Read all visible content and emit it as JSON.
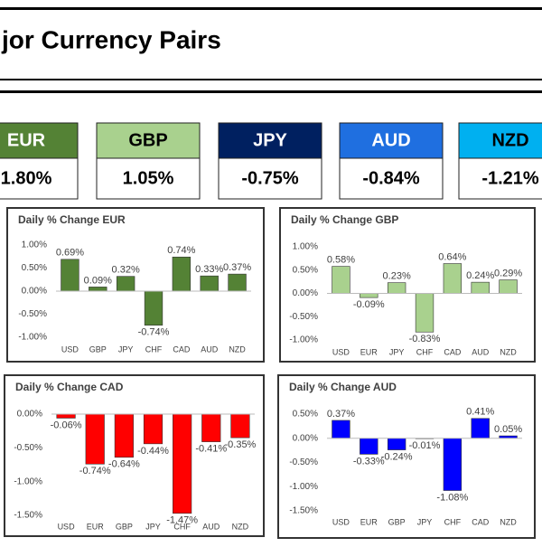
{
  "header": {
    "title": "jor Currency Pairs"
  },
  "tiles": [
    {
      "name": "EUR",
      "value": "1.80%",
      "color": "#548235",
      "text_color": "#ffffff"
    },
    {
      "name": "GBP",
      "value": "1.05%",
      "color": "#a9d18e",
      "text_color": "#000000"
    },
    {
      "name": "JPY",
      "value": "-0.75%",
      "color": "#002060",
      "text_color": "#ffffff"
    },
    {
      "name": "AUD",
      "value": "-0.84%",
      "color": "#1f6fe0",
      "text_color": "#ffffff"
    },
    {
      "name": "NZD",
      "value": "-1.21%",
      "color": "#00b0f0",
      "text_color": "#000000"
    }
  ],
  "chart_data": [
    {
      "type": "bar",
      "title": "Daily % Change EUR",
      "color": "#548235",
      "categories": [
        "USD",
        "GBP",
        "JPY",
        "CHF",
        "CAD",
        "AUD",
        "NZD"
      ],
      "values": [
        0.69,
        0.09,
        0.32,
        -0.74,
        0.74,
        0.33,
        0.37
      ],
      "value_labels": [
        "0.69%",
        "0.09%",
        "0.32%",
        "-0.74%",
        "0.74%",
        "0.33%",
        "0.37%"
      ],
      "ylim": [
        -1,
        1
      ],
      "yticks": [
        {
          "value": -1,
          "label": "-1.00%"
        },
        {
          "value": -0.5,
          "label": "-0.50%"
        },
        {
          "value": 0,
          "label": "0.00%"
        },
        {
          "value": 0.5,
          "label": "0.50%"
        },
        {
          "value": 1,
          "label": "1.00%"
        }
      ]
    },
    {
      "type": "bar",
      "title": "Daily % Change GBP",
      "color": "#a9d18e",
      "categories": [
        "USD",
        "EUR",
        "JPY",
        "CHF",
        "CAD",
        "AUD",
        "NZD"
      ],
      "values": [
        0.58,
        -0.09,
        0.23,
        -0.83,
        0.64,
        0.24,
        0.29
      ],
      "value_labels": [
        "0.58%",
        "-0.09%",
        "0.23%",
        "-0.83%",
        "0.64%",
        "0.24%",
        "0.29%"
      ],
      "ylim": [
        -1,
        1
      ],
      "yticks": [
        {
          "value": -1,
          "label": "-1.00%"
        },
        {
          "value": -0.5,
          "label": "-0.50%"
        },
        {
          "value": 0,
          "label": "0.00%"
        },
        {
          "value": 0.5,
          "label": "0.50%"
        },
        {
          "value": 1,
          "label": "1.00%"
        }
      ]
    },
    {
      "type": "bar",
      "title": "Daily % Change CAD",
      "color": "#ff0000",
      "categories": [
        "USD",
        "EUR",
        "GBP",
        "JPY",
        "CHF",
        "AUD",
        "NZD"
      ],
      "values": [
        -0.06,
        -0.74,
        -0.64,
        -0.44,
        -1.47,
        -0.41,
        -0.35
      ],
      "value_labels": [
        "-0.06%",
        "-0.74%",
        "-0.64%",
        "-0.44%",
        "-1.47%",
        "-0.41%",
        "-0.35%"
      ],
      "ylim": [
        -1.5,
        0
      ],
      "yticks": [
        {
          "value": -1.5,
          "label": "-1.50%"
        },
        {
          "value": -1,
          "label": "-1.00%"
        },
        {
          "value": -0.5,
          "label": "-0.50%"
        },
        {
          "value": 0,
          "label": "0.00%"
        }
      ]
    },
    {
      "type": "bar",
      "title": "Daily % Change AUD",
      "color": "#0000ff",
      "categories": [
        "USD",
        "EUR",
        "GBP",
        "JPY",
        "CHF",
        "CAD",
        "NZD"
      ],
      "values": [
        0.37,
        -0.33,
        -0.24,
        -0.01,
        -1.08,
        0.41,
        0.05
      ],
      "value_labels": [
        "0.37%",
        "-0.33%",
        "-0.24%",
        "-0.01%",
        "-1.08%",
        "0.41%",
        "0.05%"
      ],
      "ylim": [
        -1.5,
        0.5
      ],
      "yticks": [
        {
          "value": -1.5,
          "label": "-1.50%"
        },
        {
          "value": -1,
          "label": "-1.00%"
        },
        {
          "value": -0.5,
          "label": "-0.50%"
        },
        {
          "value": 0,
          "label": "0.00%"
        },
        {
          "value": 0.5,
          "label": "0.50%"
        }
      ]
    }
  ]
}
